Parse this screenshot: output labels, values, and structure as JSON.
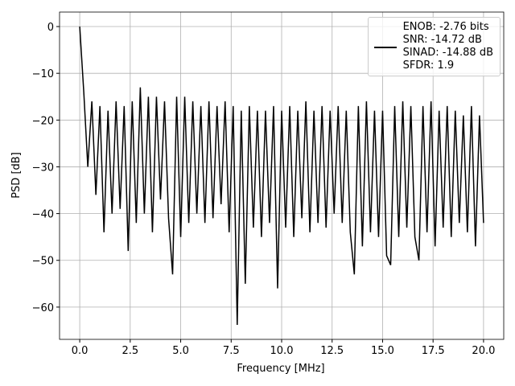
{
  "chart_data": {
    "type": "line",
    "xlabel": "Frequency [MHz]",
    "ylabel": "PSD [dB]",
    "x": [
      0,
      0.2,
      0.4,
      0.6,
      0.8,
      1.0,
      1.2,
      1.4,
      1.6,
      1.8,
      2.0,
      2.2,
      2.4,
      2.6,
      2.8,
      3.0,
      3.2,
      3.4,
      3.6,
      3.8,
      4.0,
      4.2,
      4.4,
      4.6,
      4.8,
      5.0,
      5.2,
      5.4,
      5.6,
      5.8,
      6.0,
      6.2,
      6.4,
      6.6,
      6.8,
      7.0,
      7.2,
      7.4,
      7.6,
      7.8,
      8.0,
      8.2,
      8.4,
      8.6,
      8.8,
      9.0,
      9.2,
      9.4,
      9.6,
      9.8,
      10.0,
      10.2,
      10.4,
      10.6,
      10.8,
      11.0,
      11.2,
      11.4,
      11.6,
      11.8,
      12.0,
      12.2,
      12.4,
      12.6,
      12.8,
      13.0,
      13.2,
      13.4,
      13.6,
      13.8,
      14.0,
      14.2,
      14.4,
      14.6,
      14.8,
      15.0,
      15.2,
      15.4,
      15.6,
      15.8,
      16.0,
      16.2,
      16.4,
      16.6,
      16.8,
      17.0,
      17.2,
      17.4,
      17.6,
      17.8,
      18.0,
      18.2,
      18.4,
      18.6,
      18.8,
      19.0,
      19.2,
      19.4,
      19.6,
      19.8,
      20.0
    ],
    "series": [
      {
        "name": "ENOB: -2.76 bits\nSNR: -14.72 dB\nSINAD: -14.88 dB\nSFDR: 1.9",
        "color": "#000000",
        "values": [
          0,
          -14,
          -30,
          -16,
          -36,
          -17,
          -44,
          -18,
          -40,
          -16,
          -39,
          -17,
          -48,
          -16,
          -42,
          -13,
          -40,
          -15,
          -44,
          -15,
          -37,
          -16,
          -41,
          -53,
          -15,
          -45,
          -15,
          -42,
          -16,
          -40,
          -17,
          -42,
          -16,
          -41,
          -17,
          -38,
          -16,
          -44,
          -17,
          -63.8,
          -18,
          -55,
          -17,
          -43,
          -18,
          -45,
          -18,
          -42,
          -17,
          -56,
          -18,
          -43,
          -17,
          -45,
          -18,
          -41,
          -16,
          -44,
          -18,
          -42,
          -17,
          -43,
          -18,
          -40,
          -17,
          -42,
          -18,
          -44,
          -53,
          -17,
          -47,
          -16,
          -44,
          -18,
          -45,
          -18,
          -49,
          -51,
          -17,
          -45,
          -16,
          -43,
          -17,
          -45,
          -50,
          -17,
          -44,
          -16,
          -47,
          -18,
          -43,
          -17,
          -45,
          -18,
          -42,
          -19,
          -44,
          -17,
          -47,
          -19,
          -42
        ]
      }
    ],
    "xlim": [
      -1.0,
      21.0
    ],
    "ylim": [
      -66.9,
      3.1
    ],
    "xticks": [
      {
        "value": 0,
        "label": "0.0"
      },
      2.5,
      {
        "value": 5,
        "label": "5.0"
      },
      7.5,
      {
        "value": 10,
        "label": "10.0"
      },
      12.5,
      {
        "value": 15,
        "label": "15.0"
      },
      17.5,
      {
        "value": 20,
        "label": "20.0"
      }
    ],
    "yticks": [
      {
        "value": -60,
        "label": "−60"
      },
      {
        "value": -50,
        "label": "−50"
      },
      {
        "value": -40,
        "label": "−40"
      },
      {
        "value": -30,
        "label": "−30"
      },
      {
        "value": -20,
        "label": "−20"
      },
      {
        "value": -10,
        "label": "−10"
      },
      0
    ],
    "grid": true,
    "legend": "upper right"
  }
}
